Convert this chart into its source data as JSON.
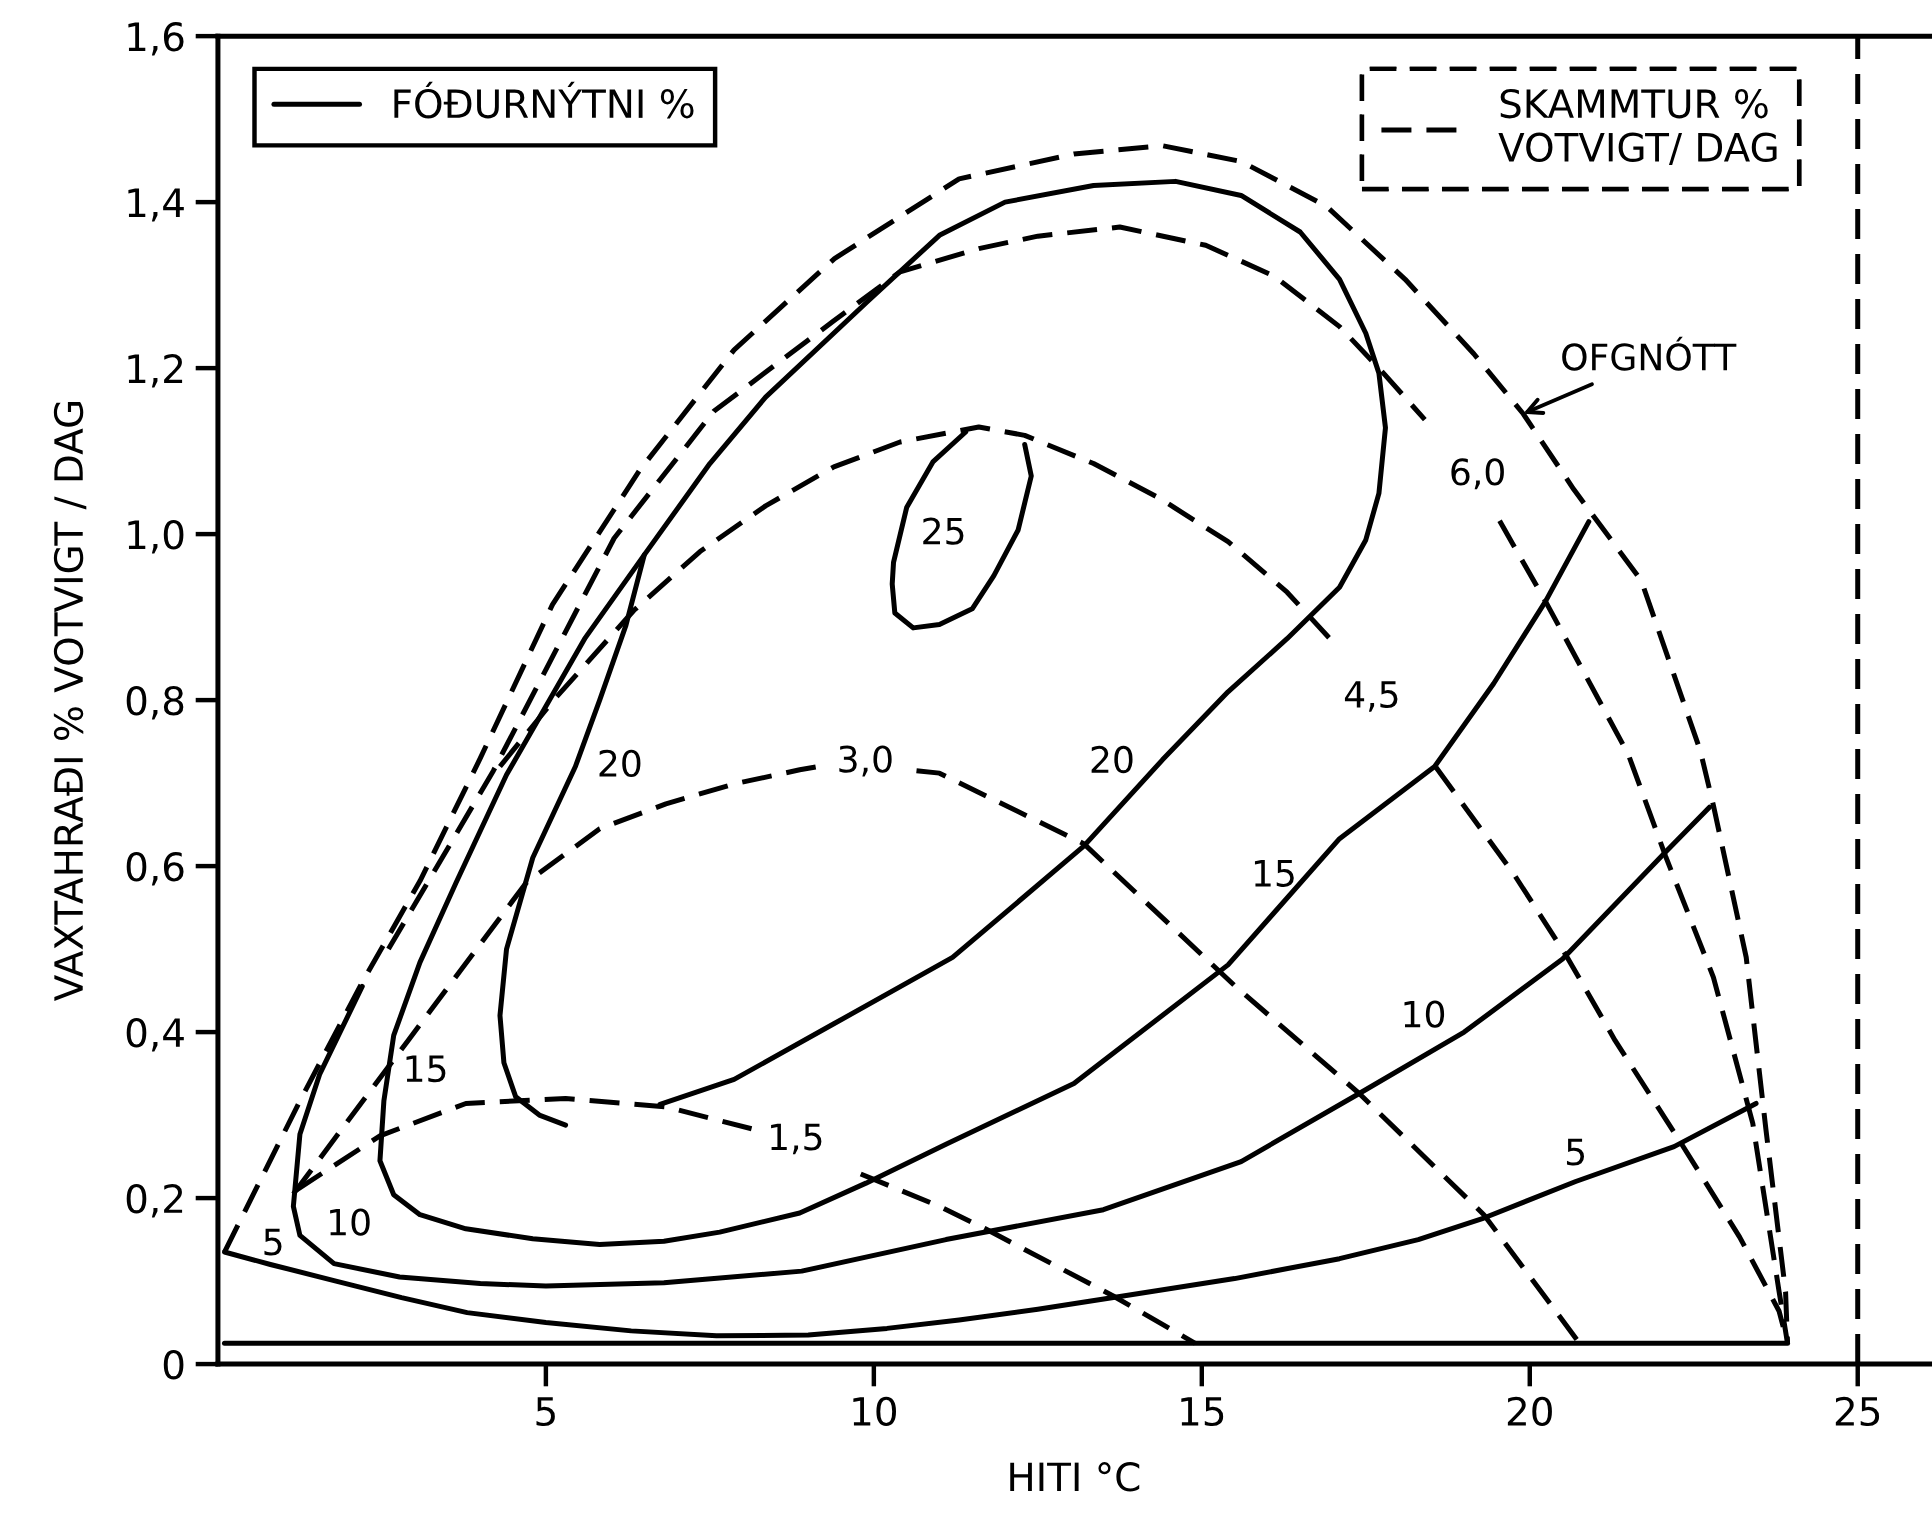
{
  "chart_data": {
    "type": "line",
    "xlabel": "HITI °C",
    "ylabel": "VAXTAHRAÐI % VOTVIGT / DAG",
    "xlim": [
      0,
      26.1
    ],
    "ylim": [
      0,
      1.6
    ],
    "xticks": [
      5,
      10,
      15,
      20,
      25
    ],
    "yticks": [
      0,
      {
        "value": 0.2,
        "label": "0,2"
      },
      {
        "value": 0.4,
        "label": "0,4"
      },
      {
        "value": 0.6,
        "label": "0,6"
      },
      {
        "value": 0.8,
        "label": "0,8"
      },
      {
        "value": 1.0,
        "label": "1,0"
      },
      {
        "value": 1.2,
        "label": "1,2"
      },
      {
        "value": 1.4,
        "label": "1,4"
      },
      {
        "value": 1.6,
        "label": "1,6"
      }
    ],
    "legend": "top",
    "series": [
      {
        "name": "FÓÐURNÝTNI %",
        "color": "#000000",
        "line_style": "solid",
        "x": [
          0.1,
          0.8,
          1.8,
          2.8,
          3.8,
          5.0,
          6.3,
          7.6,
          9.0,
          10.2,
          11.3,
          12.5,
          13.8,
          15.5,
          17.1,
          18.3,
          19.3,
          20.7,
          22.2,
          23.45
        ],
        "values": [
          0.135,
          0.12,
          0.1,
          0.08,
          0.062,
          0.05,
          0.04,
          0.034,
          0.035,
          0.043,
          0.053,
          0.066,
          0.082,
          0.103,
          0.127,
          0.15,
          0.176,
          0.22,
          0.262,
          0.314
        ]
      },
      {
        "color": "#000000",
        "line_style": "solid",
        "x": [
          2.2,
          1.55,
          1.25,
          1.15,
          1.25,
          1.77,
          2.77,
          4.0,
          5.0,
          6.8,
          8.9,
          11.1,
          13.5,
          15.6,
          17.4,
          19.0,
          20.5,
          22.07,
          22.74
        ],
        "values": [
          0.455,
          0.349,
          0.277,
          0.19,
          0.155,
          0.121,
          0.105,
          0.097,
          0.094,
          0.098,
          0.112,
          0.15,
          0.186,
          0.244,
          0.326,
          0.4,
          0.488,
          0.617,
          0.671
        ]
      },
      {
        "color": "#000000",
        "line_style": "solid",
        "x": [
          6.5,
          5.6,
          4.4,
          3.63,
          3.08,
          2.68,
          2.53,
          2.47,
          2.68,
          3.08,
          3.78,
          4.8,
          5.82,
          6.8,
          7.65,
          8.87,
          9.88,
          11.1,
          13.05,
          15.4,
          17.1,
          18.55,
          19.45,
          20.24,
          20.9
        ],
        "values": [
          0.975,
          0.875,
          0.71,
          0.58,
          0.484,
          0.396,
          0.317,
          0.245,
          0.204,
          0.18,
          0.163,
          0.151,
          0.144,
          0.148,
          0.159,
          0.182,
          0.218,
          0.265,
          0.338,
          0.481,
          0.633,
          0.72,
          0.82,
          0.919,
          1.015
        ]
      },
      {
        "color": "#000000",
        "line_style": "solid",
        "x": [
          5.3,
          4.9,
          4.54,
          4.36,
          4.3,
          4.4,
          4.8,
          5.45,
          5.82,
          6.22,
          6.5,
          7.5,
          8.35,
          9.9,
          11.0,
          12.0,
          13.35,
          14.6,
          15.6,
          16.5,
          17.1,
          17.5,
          17.7,
          17.8,
          17.7,
          17.5,
          17.1,
          16.3,
          15.4,
          14.4,
          13.2,
          11.2,
          9.39,
          7.87,
          6.74
        ],
        "values": [
          0.288,
          0.3,
          0.322,
          0.363,
          0.42,
          0.5,
          0.61,
          0.72,
          0.8,
          0.89,
          0.975,
          1.085,
          1.165,
          1.28,
          1.36,
          1.4,
          1.42,
          1.425,
          1.408,
          1.364,
          1.307,
          1.242,
          1.194,
          1.128,
          1.049,
          0.993,
          0.936,
          0.874,
          0.81,
          0.728,
          0.624,
          0.49,
          0.41,
          0.343,
          0.313
        ]
      },
      {
        "color": "#000000",
        "line_style": "solid",
        "x": [
          11.4,
          10.9,
          10.5,
          10.3,
          10.28,
          10.32,
          10.6,
          11.0,
          11.5,
          11.83,
          12.2,
          12.4,
          12.3
        ],
        "values": [
          1.123,
          1.087,
          1.032,
          0.966,
          0.94,
          0.905,
          0.887,
          0.891,
          0.91,
          0.95,
          1.005,
          1.07,
          1.108
        ]
      },
      {
        "name": "SKAMMTUR %\nVOTVIGT/ DAG",
        "color": "#000000",
        "line_style": "dashed",
        "x": [
          0.1,
          1.25,
          2.2,
          3.08,
          4.0,
          5.1,
          6.43,
          7.87,
          9.4,
          11.3,
          13.05,
          14.4,
          15.6,
          16.9,
          18.1,
          19.15,
          19.9,
          20.67,
          21.7,
          22.6,
          22.8,
          23.3,
          23.6,
          23.9,
          23.93
        ],
        "values": [
          0.135,
          0.317,
          0.46,
          0.582,
          0.73,
          0.915,
          1.077,
          1.222,
          1.332,
          1.428,
          1.458,
          1.468,
          1.449,
          1.395,
          1.307,
          1.217,
          1.145,
          1.054,
          0.944,
          0.739,
          0.673,
          0.49,
          0.283,
          0.087,
          0.025
        ]
      },
      {
        "color": "#000000",
        "line_style": "dashed",
        "x": [
          2.6,
          4.2,
          6.04,
          7.56,
          9.39,
          10.4,
          11.6,
          12.5,
          13.75,
          15.06,
          16.1,
          17.1,
          17.7,
          18.4
        ],
        "values": [
          0.5,
          0.715,
          0.995,
          1.148,
          1.257,
          1.316,
          1.344,
          1.359,
          1.37,
          1.348,
          1.311,
          1.25,
          1.2,
          1.138
        ]
      },
      {
        "color": "#000000",
        "line_style": "dashed",
        "x": [
          19.54,
          20.24,
          21.5,
          22.07,
          22.8,
          23.4,
          23.8,
          23.93
        ],
        "values": [
          1.016,
          0.919,
          0.735,
          0.612,
          0.466,
          0.29,
          0.088,
          0.025
        ]
      },
      {
        "color": "#000000",
        "line_style": "dashed",
        "x": [
          4.3,
          5.12,
          6.34,
          7.35,
          8.35,
          9.39,
          10.4,
          11.6,
          12.3,
          13.35,
          14.36,
          15.4,
          16.3,
          17.0
        ],
        "values": [
          0.72,
          0.8,
          0.908,
          0.979,
          1.034,
          1.081,
          1.111,
          1.129,
          1.119,
          1.085,
          1.043,
          0.991,
          0.93,
          0.87
        ]
      },
      {
        "color": "#000000",
        "line_style": "dashed",
        "x": [
          18.57,
          19.76,
          20.55,
          21.3,
          22.3,
          23.2,
          23.8,
          23.93
        ],
        "values": [
          0.719,
          0.59,
          0.493,
          0.39,
          0.267,
          0.153,
          0.064,
          0.025
        ]
      },
      {
        "color": "#000000",
        "line_style": "dashed",
        "x": [
          1.15,
          2.9,
          4.7,
          5.82,
          6.83,
          7.87,
          8.87,
          9.15
        ],
        "values": [
          0.205,
          0.39,
          0.58,
          0.645,
          0.675,
          0.699,
          0.716,
          0.72
        ]
      },
      {
        "color": "#000000",
        "line_style": "dashed",
        "x": [
          10.65,
          11.0,
          13.2,
          15.5,
          17.4,
          19.3,
          20.76
        ],
        "values": [
          0.715,
          0.712,
          0.627,
          0.456,
          0.326,
          0.18,
          0.025
        ]
      },
      {
        "color": "#000000",
        "line_style": "dashed",
        "x": [
          1.2,
          2.47,
          3.78,
          5.3,
          6.83,
          8.26
        ],
        "values": [
          0.21,
          0.275,
          0.314,
          0.32,
          0.31,
          0.281
        ]
      },
      {
        "color": "#000000",
        "line_style": "dashed",
        "x": [
          9.8,
          11.0,
          11.7,
          13.65,
          14.9
        ],
        "values": [
          0.229,
          0.19,
          0.163,
          0.082,
          0.025
        ]
      },
      {
        "color": "#000000",
        "line_style": "solid",
        "x": [
          0.1,
          23.93
        ],
        "values": [
          0.025,
          0.025
        ]
      }
    ],
    "ref_lines": [
      {
        "axis": "x",
        "value": 25,
        "line_style": "dashed",
        "color": "#000000"
      }
    ],
    "annotations": [
      {
        "text": "OFGNÓTT",
        "x": 19.9,
        "y": 1.145
      },
      {
        "text": "25",
        "x": 11.0,
        "y": 0.891
      },
      {
        "text": "20",
        "x": 5.45,
        "y": 0.72
      },
      {
        "text": "20",
        "x": 13.63,
        "y": 0.661
      },
      {
        "text": "15",
        "x": 2.53,
        "y": 0.317
      },
      {
        "text": "15",
        "x": 16.1,
        "y": 0.544
      },
      {
        "text": "10",
        "x": 2.0,
        "y": 0.117
      },
      {
        "text": "10",
        "x": 18.38,
        "y": 0.371
      },
      {
        "text": "5",
        "x": 0.8,
        "y": 0.12
      },
      {
        "text": "5",
        "x": 20.7,
        "y": 0.22
      },
      {
        "text": "1,5",
        "x": 8.26,
        "y": 0.281
      },
      {
        "text": "3,0",
        "x": 9.15,
        "y": 0.72
      },
      {
        "text": "4,5",
        "x": 17.0,
        "y": 0.87
      },
      {
        "text": "6,0",
        "x": 18.4,
        "y": 1.138
      }
    ]
  }
}
